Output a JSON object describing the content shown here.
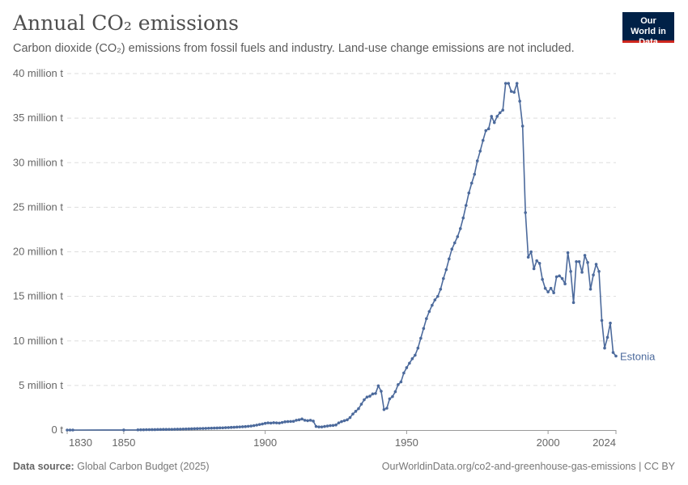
{
  "header": {
    "title": "Annual CO₂ emissions",
    "subtitle": "Carbon dioxide (CO₂) emissions from fossil fuels and industry. Land-use change emissions are not included.",
    "logo_text": "Our World in Data"
  },
  "footer": {
    "source_label": "Data source:",
    "source": "Global Carbon Budget (2025)",
    "url": "OurWorldinData.org/co2-and-greenhouse-gas-emissions | CC BY"
  },
  "colors": {
    "series": "#4c6a9c",
    "logo_bg": "#002147",
    "logo_accent": "#ce261e"
  },
  "chart_data": {
    "type": "line",
    "title": "Annual CO₂ emissions",
    "xlim": [
      1830,
      2024
    ],
    "ylim": [
      0,
      40
    ],
    "grid": "horizontal dashed",
    "x_ticks": [
      1830,
      1850,
      1900,
      1950,
      2000,
      2024
    ],
    "y_ticks": [
      {
        "v": 0,
        "label": "0 t"
      },
      {
        "v": 5,
        "label": "5 million t"
      },
      {
        "v": 10,
        "label": "10 million t"
      },
      {
        "v": 15,
        "label": "15 million t"
      },
      {
        "v": 20,
        "label": "20 million t"
      },
      {
        "v": 25,
        "label": "25 million t"
      },
      {
        "v": 30,
        "label": "30 million t"
      },
      {
        "v": 35,
        "label": "35 million t"
      },
      {
        "v": 40,
        "label": "40 million t"
      }
    ],
    "series": [
      {
        "name": "Estonia",
        "unit": "million t",
        "points": [
          [
            1830,
            0
          ],
          [
            1831,
            0
          ],
          [
            1832,
            0
          ],
          [
            1850,
            0.01
          ],
          [
            1855,
            0.02
          ],
          [
            1856,
            0.03
          ],
          [
            1857,
            0.03
          ],
          [
            1858,
            0.04
          ],
          [
            1859,
            0.04
          ],
          [
            1860,
            0.05
          ],
          [
            1861,
            0.05
          ],
          [
            1862,
            0.06
          ],
          [
            1863,
            0.06
          ],
          [
            1864,
            0.07
          ],
          [
            1865,
            0.07
          ],
          [
            1866,
            0.08
          ],
          [
            1867,
            0.08
          ],
          [
            1868,
            0.09
          ],
          [
            1869,
            0.1
          ],
          [
            1870,
            0.1
          ],
          [
            1871,
            0.11
          ],
          [
            1872,
            0.12
          ],
          [
            1873,
            0.13
          ],
          [
            1874,
            0.14
          ],
          [
            1875,
            0.15
          ],
          [
            1876,
            0.16
          ],
          [
            1877,
            0.17
          ],
          [
            1878,
            0.18
          ],
          [
            1879,
            0.19
          ],
          [
            1880,
            0.2
          ],
          [
            1881,
            0.21
          ],
          [
            1882,
            0.22
          ],
          [
            1883,
            0.23
          ],
          [
            1884,
            0.24
          ],
          [
            1885,
            0.25
          ],
          [
            1886,
            0.27
          ],
          [
            1887,
            0.28
          ],
          [
            1888,
            0.3
          ],
          [
            1889,
            0.31
          ],
          [
            1890,
            0.33
          ],
          [
            1891,
            0.35
          ],
          [
            1892,
            0.37
          ],
          [
            1893,
            0.39
          ],
          [
            1894,
            0.42
          ],
          [
            1895,
            0.45
          ],
          [
            1896,
            0.5
          ],
          [
            1897,
            0.55
          ],
          [
            1898,
            0.62
          ],
          [
            1899,
            0.68
          ],
          [
            1900,
            0.75
          ],
          [
            1901,
            0.8
          ],
          [
            1902,
            0.78
          ],
          [
            1903,
            0.82
          ],
          [
            1904,
            0.8
          ],
          [
            1905,
            0.78
          ],
          [
            1906,
            0.85
          ],
          [
            1907,
            0.92
          ],
          [
            1908,
            0.95
          ],
          [
            1909,
            0.96
          ],
          [
            1910,
            0.98
          ],
          [
            1911,
            1.1
          ],
          [
            1912,
            1.15
          ],
          [
            1913,
            1.24
          ],
          [
            1914,
            1.1
          ],
          [
            1915,
            1.05
          ],
          [
            1916,
            1.1
          ],
          [
            1917,
            1.0
          ],
          [
            1918,
            0.4
          ],
          [
            1919,
            0.35
          ],
          [
            1920,
            0.35
          ],
          [
            1921,
            0.4
          ],
          [
            1922,
            0.45
          ],
          [
            1923,
            0.5
          ],
          [
            1924,
            0.52
          ],
          [
            1925,
            0.57
          ],
          [
            1926,
            0.8
          ],
          [
            1927,
            0.95
          ],
          [
            1928,
            1.05
          ],
          [
            1929,
            1.15
          ],
          [
            1930,
            1.4
          ],
          [
            1931,
            1.8
          ],
          [
            1932,
            2.1
          ],
          [
            1933,
            2.4
          ],
          [
            1934,
            2.9
          ],
          [
            1935,
            3.4
          ],
          [
            1936,
            3.7
          ],
          [
            1937,
            3.8
          ],
          [
            1938,
            4.05
          ],
          [
            1939,
            4.1
          ],
          [
            1940,
            4.96
          ],
          [
            1941,
            4.35
          ],
          [
            1942,
            2.3
          ],
          [
            1943,
            2.45
          ],
          [
            1944,
            3.5
          ],
          [
            1945,
            3.75
          ],
          [
            1946,
            4.3
          ],
          [
            1947,
            5.1
          ],
          [
            1948,
            5.4
          ],
          [
            1949,
            6.4
          ],
          [
            1950,
            7.0
          ],
          [
            1951,
            7.5
          ],
          [
            1952,
            8.0
          ],
          [
            1953,
            8.4
          ],
          [
            1954,
            9.2
          ],
          [
            1955,
            10.3
          ],
          [
            1956,
            11.4
          ],
          [
            1957,
            12.5
          ],
          [
            1958,
            13.3
          ],
          [
            1959,
            14.0
          ],
          [
            1960,
            14.6
          ],
          [
            1961,
            15.0
          ],
          [
            1962,
            15.8
          ],
          [
            1963,
            17.0
          ],
          [
            1964,
            18.0
          ],
          [
            1965,
            19.2
          ],
          [
            1966,
            20.3
          ],
          [
            1967,
            21.0
          ],
          [
            1968,
            21.7
          ],
          [
            1969,
            22.6
          ],
          [
            1970,
            23.8
          ],
          [
            1971,
            25.2
          ],
          [
            1972,
            26.6
          ],
          [
            1973,
            27.7
          ],
          [
            1974,
            28.7
          ],
          [
            1975,
            30.2
          ],
          [
            1976,
            31.3
          ],
          [
            1977,
            32.5
          ],
          [
            1978,
            33.6
          ],
          [
            1979,
            33.8
          ],
          [
            1980,
            35.2
          ],
          [
            1981,
            34.5
          ],
          [
            1982,
            35.2
          ],
          [
            1983,
            35.6
          ],
          [
            1984,
            35.9
          ],
          [
            1985,
            38.9
          ],
          [
            1986,
            38.9
          ],
          [
            1987,
            38.0
          ],
          [
            1988,
            37.9
          ],
          [
            1989,
            38.9
          ],
          [
            1990,
            36.9
          ],
          [
            1991,
            34.1
          ],
          [
            1992,
            24.4
          ],
          [
            1993,
            19.4
          ],
          [
            1994,
            20.0
          ],
          [
            1995,
            18.1
          ],
          [
            1996,
            19.0
          ],
          [
            1997,
            18.7
          ],
          [
            1998,
            16.9
          ],
          [
            1999,
            15.9
          ],
          [
            2000,
            15.5
          ],
          [
            2001,
            15.9
          ],
          [
            2002,
            15.4
          ],
          [
            2003,
            17.2
          ],
          [
            2004,
            17.3
          ],
          [
            2005,
            17.0
          ],
          [
            2006,
            16.4
          ],
          [
            2007,
            19.9
          ],
          [
            2008,
            17.8
          ],
          [
            2009,
            14.3
          ],
          [
            2010,
            18.9
          ],
          [
            2011,
            18.9
          ],
          [
            2012,
            17.7
          ],
          [
            2013,
            19.6
          ],
          [
            2014,
            18.8
          ],
          [
            2015,
            15.8
          ],
          [
            2016,
            17.4
          ],
          [
            2017,
            18.6
          ],
          [
            2018,
            17.8
          ],
          [
            2019,
            12.3
          ],
          [
            2020,
            9.2
          ],
          [
            2021,
            10.4
          ],
          [
            2022,
            12.0
          ],
          [
            2023,
            8.7
          ],
          [
            2024,
            8.3
          ]
        ]
      }
    ]
  }
}
